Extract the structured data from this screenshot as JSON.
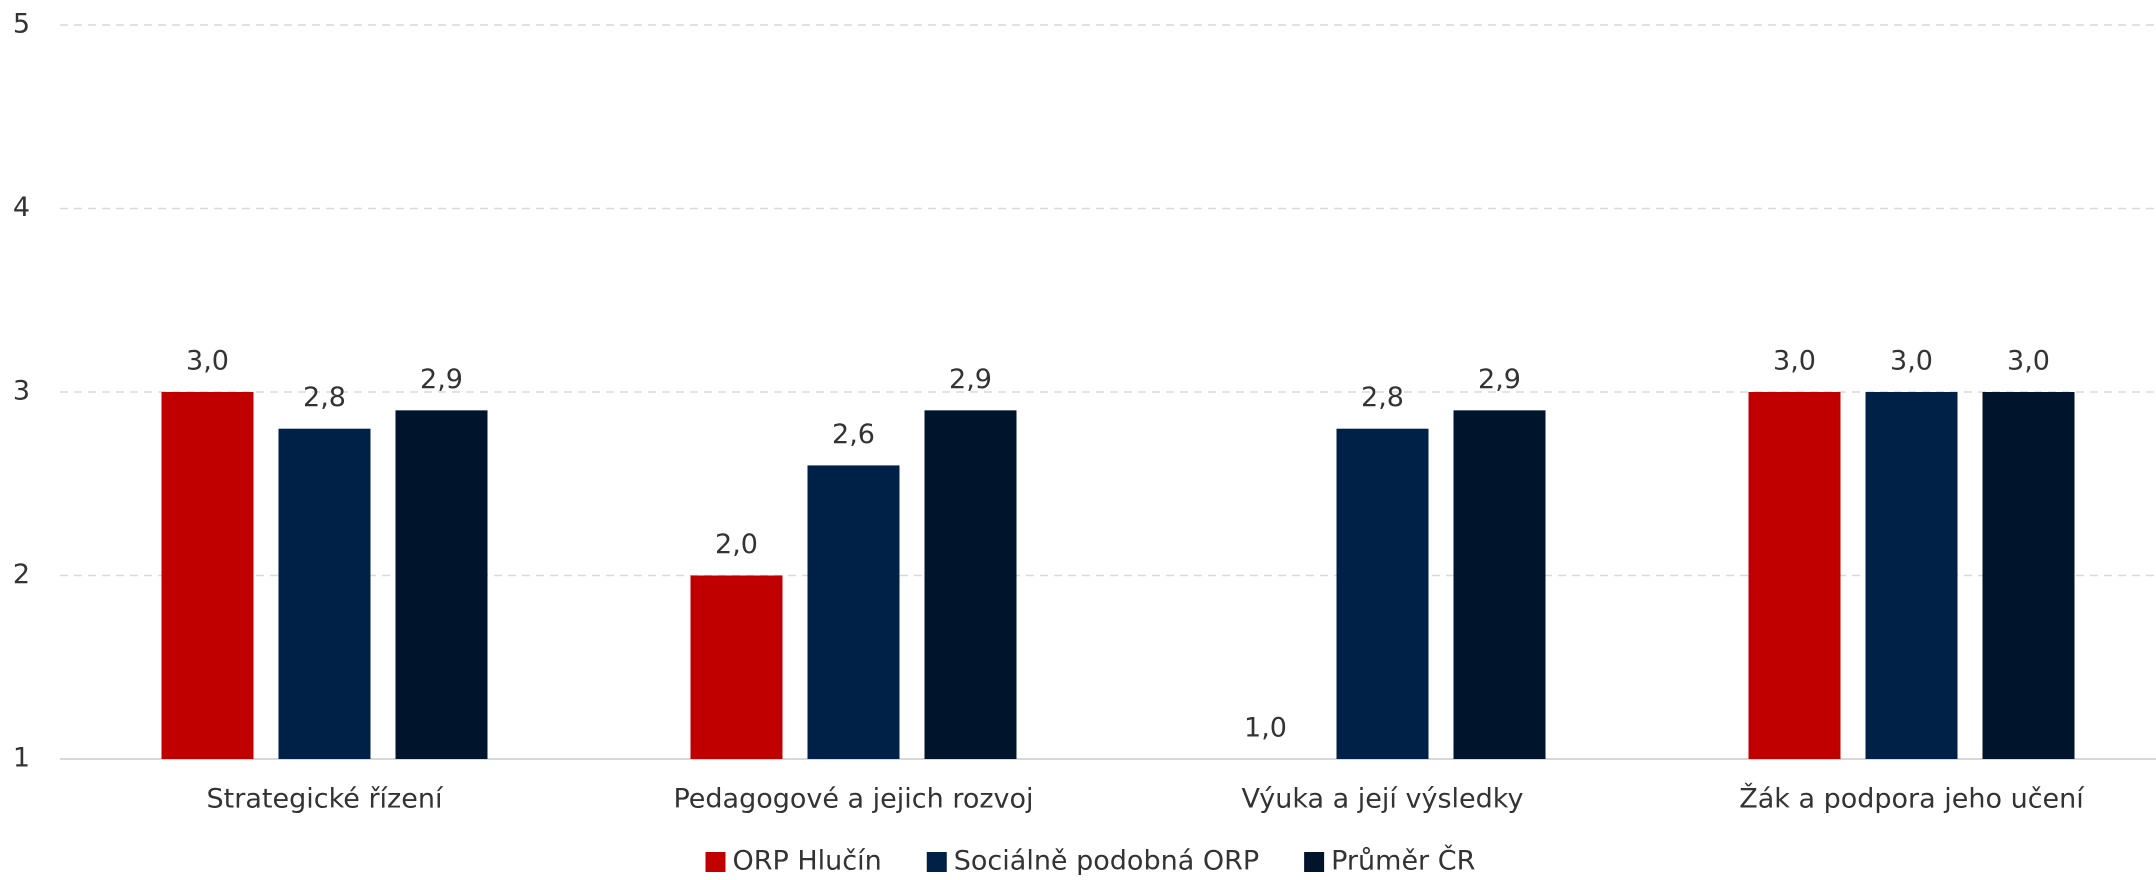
{
  "chart_data": {
    "type": "bar",
    "categories": [
      "Strategické řízení",
      "Pedagogové a jejich rozvoj",
      "Výuka a její výsledky",
      "Žák a podpora jeho učení"
    ],
    "series": [
      {
        "name": "ORP Hlučín",
        "color": "#c00000",
        "values": [
          3.0,
          2.0,
          1.0,
          3.0
        ],
        "value_labels": [
          "3,0",
          "2,0",
          "1,0",
          "3,0"
        ]
      },
      {
        "name": "Sociálně podobná ORP",
        "color": "#002147",
        "values": [
          2.8,
          2.6,
          2.8,
          3.0
        ],
        "value_labels": [
          "2,8",
          "2,6",
          "2,8",
          "3,0"
        ]
      },
      {
        "name": "Průměr ČR",
        "color": "#00142b",
        "values": [
          2.9,
          2.9,
          2.9,
          3.0
        ],
        "value_labels": [
          "2,9",
          "2,9",
          "2,9",
          "3,0"
        ]
      }
    ],
    "ylim": [
      1,
      5
    ],
    "yticks": [
      1,
      2,
      3,
      4,
      5
    ],
    "grid": true,
    "legend": "bottom"
  }
}
